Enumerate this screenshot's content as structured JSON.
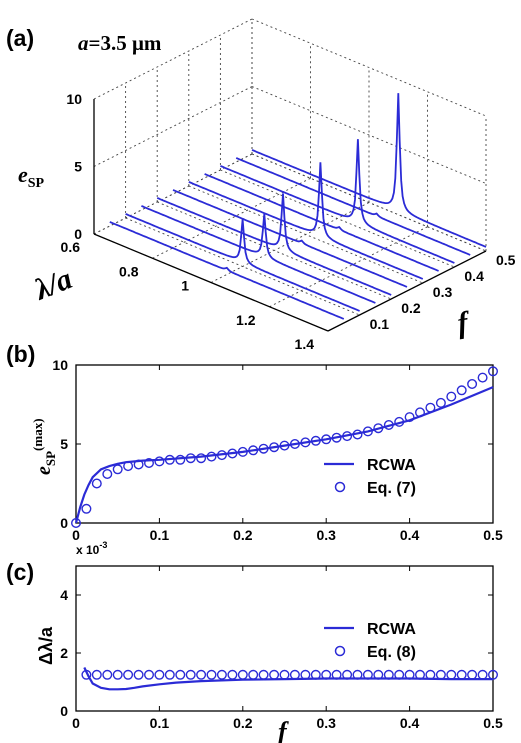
{
  "panel_a": {
    "letter": "(a)",
    "annotation_prefix": "a",
    "annotation_value": "=3.5 μm",
    "z_label_main": "e",
    "z_label_sub": "SP",
    "x_label": "λ/a",
    "y_label": "f"
  },
  "panel_b": {
    "letter": "(b)",
    "ylabel_main": "e",
    "ylabel_sub": "SP",
    "ylabel_sup": "(max)",
    "legend_line": "RCWA",
    "legend_marker": "Eq. (7)"
  },
  "panel_c": {
    "letter": "(c)",
    "multiplier": "x 10",
    "multiplier_exp": "-3",
    "ylabel": "Δλ/a",
    "xlabel": "f",
    "legend_line": "RCWA",
    "legend_marker": "Eq. (8)"
  },
  "colors": {
    "series": "#2b2bd6",
    "axes": "#000000",
    "grid": "#444444"
  },
  "chart_data": [
    {
      "type": "line",
      "panel": "(a)",
      "x_ticks": [
        "0.6",
        "0.8",
        "1",
        "1.2",
        "1.4"
      ],
      "y_ticks": [
        "0.1",
        "0.2",
        "0.3",
        "0.4",
        "0.5"
      ],
      "z_ticks": [
        "0",
        "5",
        "10"
      ],
      "xlim": [
        0.6,
        1.4
      ],
      "ylim": [
        0.0,
        0.5
      ],
      "zlim": [
        0,
        10
      ],
      "grid": true,
      "curves": [
        {
          "f": 0.05,
          "peak_x": 1.0,
          "peak_z": 0.5
        },
        {
          "f": 0.1,
          "peak_x": 1.0,
          "peak_z": 3.5
        },
        {
          "f": 0.15,
          "peak_x": 1.02,
          "peak_z": 3.5
        },
        {
          "f": 0.2,
          "peak_x": 1.03,
          "peak_z": 4.5
        },
        {
          "f": 0.25,
          "peak_x": 1.04,
          "peak_z": 0.5
        },
        {
          "f": 0.3,
          "peak_x": 1.05,
          "peak_z": 5.8
        },
        {
          "f": 0.35,
          "peak_x": 1.06,
          "peak_z": 0.5
        },
        {
          "f": 0.4,
          "peak_x": 1.07,
          "peak_z": 6.5
        },
        {
          "f": 0.45,
          "peak_x": 1.08,
          "peak_z": 0.5
        },
        {
          "f": 0.5,
          "peak_x": 1.1,
          "peak_z": 9.0
        }
      ]
    },
    {
      "type": "line",
      "panel": "(b)",
      "x_ticks": [
        "0",
        "0.1",
        "0.2",
        "0.3",
        "0.4",
        "0.5"
      ],
      "y_ticks": [
        "0",
        "5",
        "10"
      ],
      "xlim": [
        0,
        0.5
      ],
      "ylim": [
        0,
        10
      ],
      "series": [
        {
          "name": "RCWA",
          "style": "line",
          "x": [
            0,
            0.005,
            0.01,
            0.015,
            0.02,
            0.03,
            0.04,
            0.05,
            0.06,
            0.08,
            0.1,
            0.15,
            0.2,
            0.25,
            0.3,
            0.35,
            0.4,
            0.45,
            0.5
          ],
          "y": [
            0,
            1.0,
            1.8,
            2.4,
            2.9,
            3.4,
            3.6,
            3.75,
            3.85,
            3.95,
            4.0,
            4.2,
            4.5,
            4.9,
            5.3,
            5.8,
            6.5,
            7.5,
            8.6
          ]
        },
        {
          "name": "Eq. (7)",
          "style": "circle",
          "x": [
            0,
            0.0125,
            0.025,
            0.0375,
            0.05,
            0.0625,
            0.075,
            0.0875,
            0.1,
            0.1125,
            0.125,
            0.1375,
            0.15,
            0.1625,
            0.175,
            0.1875,
            0.2,
            0.2125,
            0.225,
            0.2375,
            0.25,
            0.2625,
            0.275,
            0.2875,
            0.3,
            0.3125,
            0.325,
            0.3375,
            0.35,
            0.3625,
            0.375,
            0.3875,
            0.4,
            0.4125,
            0.425,
            0.4375,
            0.45,
            0.4625,
            0.475,
            0.4875,
            0.5
          ],
          "y": [
            0,
            0.9,
            2.5,
            3.1,
            3.4,
            3.6,
            3.7,
            3.8,
            3.9,
            4.0,
            4.0,
            4.1,
            4.1,
            4.2,
            4.3,
            4.4,
            4.5,
            4.6,
            4.7,
            4.8,
            4.9,
            5.0,
            5.1,
            5.2,
            5.3,
            5.4,
            5.5,
            5.6,
            5.8,
            6.0,
            6.2,
            6.4,
            6.7,
            7.0,
            7.3,
            7.6,
            8.0,
            8.4,
            8.8,
            9.2,
            9.6
          ]
        }
      ]
    },
    {
      "type": "line",
      "panel": "(c)",
      "x_ticks": [
        "0",
        "0.1",
        "0.2",
        "0.3",
        "0.4",
        "0.5"
      ],
      "y_ticks": [
        "0",
        "2",
        "4"
      ],
      "xlim": [
        0,
        0.5
      ],
      "ylim": [
        0,
        5
      ],
      "series": [
        {
          "name": "RCWA",
          "style": "line",
          "x": [
            0.01,
            0.015,
            0.02,
            0.03,
            0.04,
            0.05,
            0.06,
            0.07,
            0.08,
            0.1,
            0.12,
            0.15,
            0.2,
            0.25,
            0.3,
            0.35,
            0.4,
            0.45,
            0.5
          ],
          "y": [
            1.5,
            1.2,
            0.95,
            0.8,
            0.75,
            0.75,
            0.76,
            0.8,
            0.85,
            0.92,
            0.98,
            1.03,
            1.08,
            1.1,
            1.12,
            1.12,
            1.12,
            1.1,
            1.1
          ]
        },
        {
          "name": "Eq. (8)",
          "style": "circle",
          "x": [
            0.0125,
            0.025,
            0.0375,
            0.05,
            0.0625,
            0.075,
            0.0875,
            0.1,
            0.1125,
            0.125,
            0.1375,
            0.15,
            0.1625,
            0.175,
            0.1875,
            0.2,
            0.2125,
            0.225,
            0.2375,
            0.25,
            0.2625,
            0.275,
            0.2875,
            0.3,
            0.3125,
            0.325,
            0.3375,
            0.35,
            0.3625,
            0.375,
            0.3875,
            0.4,
            0.4125,
            0.425,
            0.4375,
            0.45,
            0.4625,
            0.475,
            0.4875,
            0.5
          ],
          "y": [
            1.25,
            1.25,
            1.25,
            1.25,
            1.25,
            1.25,
            1.25,
            1.25,
            1.25,
            1.25,
            1.25,
            1.25,
            1.25,
            1.25,
            1.25,
            1.25,
            1.25,
            1.25,
            1.25,
            1.25,
            1.25,
            1.25,
            1.25,
            1.25,
            1.25,
            1.25,
            1.25,
            1.25,
            1.25,
            1.25,
            1.25,
            1.25,
            1.25,
            1.25,
            1.25,
            1.25,
            1.25,
            1.25,
            1.25,
            1.25
          ]
        }
      ]
    }
  ]
}
